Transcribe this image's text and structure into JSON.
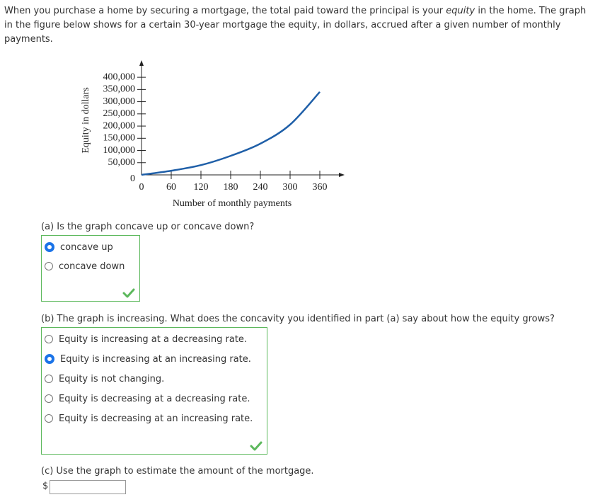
{
  "intro": {
    "before": "When you purchase a home by securing a mortgage, the total paid toward the principal is your ",
    "emphasis": "equity",
    "after": " in the home. The graph in the figure below shows for a certain 30-year mortgage the equity, in dollars, accrued after a given number of monthly payments."
  },
  "figure": {
    "type": "line",
    "ylabel": "Equity in dollars",
    "xlabel": "Number of monthly payments",
    "x": [
      0,
      60,
      120,
      180,
      240,
      300,
      360
    ],
    "values": [
      0,
      17000,
      40000,
      78000,
      128000,
      206000,
      340000
    ],
    "color": "#1f5fa8",
    "xlim": [
      0,
      410
    ],
    "ylim": [
      0,
      470000
    ],
    "xticks": [
      0,
      60,
      120,
      180,
      240,
      300,
      360
    ],
    "yticks": [
      0,
      {
        "value": 50000,
        "label": "50,000"
      },
      {
        "value": 100000,
        "label": "100,000"
      },
      {
        "value": 150000,
        "label": "150,000"
      },
      {
        "value": 200000,
        "label": "200,000"
      },
      {
        "value": 250000,
        "label": "250,000"
      },
      {
        "value": 300000,
        "label": "300,000"
      },
      {
        "value": 350000,
        "label": "350,000"
      },
      {
        "value": 400000,
        "label": "400,000"
      }
    ]
  },
  "parts": [
    {
      "question": "(a) Is the graph concave up or concave down?",
      "options": [
        "concave up",
        "concave down"
      ],
      "selected": 0
    },
    {
      "question": "(b) The graph is increasing. What does the concavity you identified in part (a) say about how the equity grows?",
      "options": [
        "Equity is increasing at a decreasing rate.",
        "Equity is increasing at an increasing rate.",
        "Equity is not changing.",
        "Equity is decreasing at a decreasing rate.",
        "Equity is decreasing at an increasing rate."
      ],
      "selected": 1
    }
  ],
  "part_c": {
    "question": "(c) Use the graph to estimate the amount of the mortgage.",
    "prefix": "$"
  }
}
